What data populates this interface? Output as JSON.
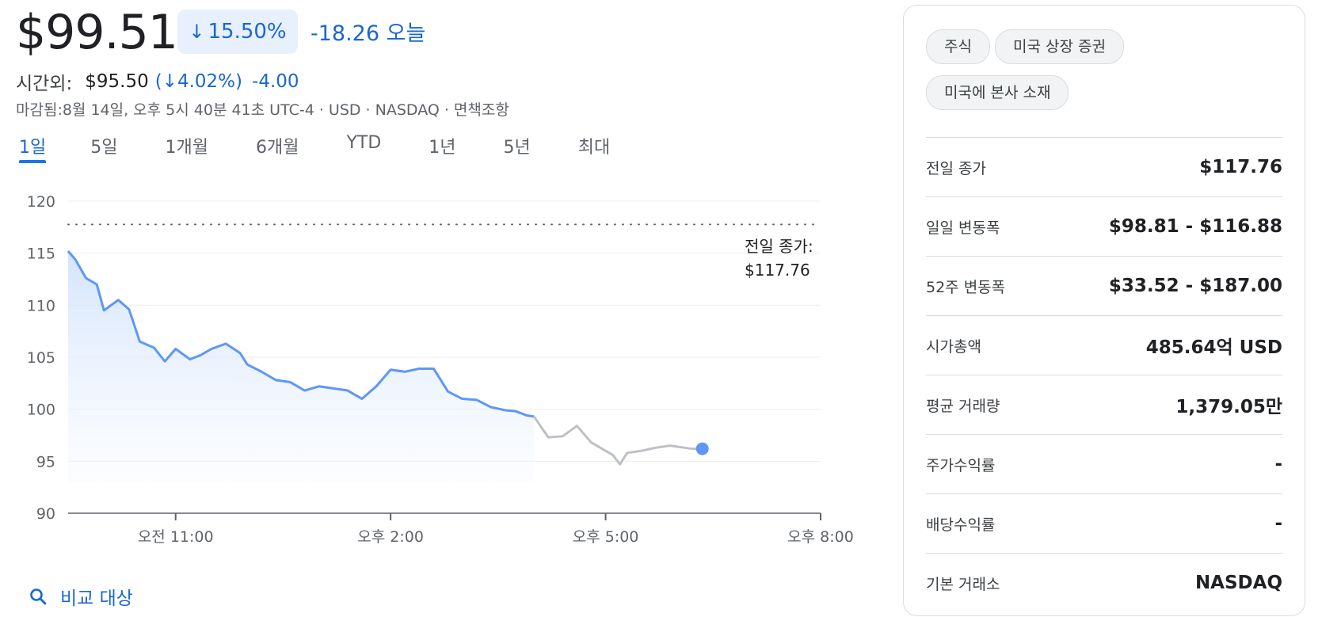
{
  "quote": {
    "price": "$99.51",
    "change_pct": "15.50%",
    "change_arrow": "↓",
    "change_abs": "-18.26 오늘",
    "after_hours": {
      "label": "시간외:",
      "price": "$95.50",
      "pct": "(↓4.02%)",
      "abs": "-4.00"
    },
    "closed_note": "마감됨:8월 14일, 오후 5시 40분 41초 UTC-4 · USD · NASDAQ · 면책조항"
  },
  "tabs": [
    {
      "label": "1일",
      "active": true
    },
    {
      "label": "5일",
      "active": false
    },
    {
      "label": "1개월",
      "active": false
    },
    {
      "label": "6개월",
      "active": false
    },
    {
      "label": "YTD",
      "active": false
    },
    {
      "label": "1년",
      "active": false
    },
    {
      "label": "5년",
      "active": false
    },
    {
      "label": "최대",
      "active": false
    }
  ],
  "chart_data": {
    "type": "line",
    "ylim": [
      90,
      120
    ],
    "yticks": [
      "120",
      "115",
      "110",
      "105",
      "100",
      "95",
      "90"
    ],
    "xticks": [
      "오전 11:00",
      "오후 2:00",
      "오후 5:00",
      "오후 8:00"
    ],
    "prev_close_label": "전일 종가:",
    "prev_close_value": "$117.76",
    "prev_close": 117.76,
    "x_hours": [
      9.5,
      20
    ],
    "series": [
      {
        "segment": "regular",
        "color": "#5e97f6",
        "x": [
          9.5,
          9.6,
          9.75,
          9.9,
          10.0,
          10.2,
          10.35,
          10.5,
          10.7,
          10.85,
          11.0,
          11.2,
          11.35,
          11.5,
          11.7,
          11.9,
          12.0,
          12.2,
          12.4,
          12.6,
          12.8,
          13.0,
          13.2,
          13.4,
          13.6,
          13.8,
          14.0,
          14.2,
          14.4,
          14.6,
          14.8,
          15.0,
          15.2,
          15.4,
          15.6,
          15.75,
          15.9,
          16.0
        ],
        "values": [
          115.2,
          114.4,
          112.6,
          112.0,
          109.5,
          110.5,
          109.6,
          106.5,
          105.9,
          104.6,
          105.8,
          104.8,
          105.2,
          105.8,
          106.3,
          105.4,
          104.3,
          103.6,
          102.8,
          102.6,
          101.8,
          102.2,
          102.0,
          101.8,
          101.0,
          102.2,
          103.8,
          103.6,
          103.9,
          103.9,
          101.7,
          101.0,
          100.9,
          100.2,
          99.9,
          99.8,
          99.4,
          99.3
        ]
      },
      {
        "segment": "after_hours",
        "color": "#bdc1c6",
        "x": [
          16.0,
          16.2,
          16.4,
          16.6,
          16.8,
          17.0,
          17.1,
          17.2,
          17.3,
          17.5,
          17.7,
          17.9,
          18.2,
          18.35
        ],
        "values": [
          99.3,
          97.3,
          97.4,
          98.4,
          96.8,
          96.0,
          95.6,
          94.7,
          95.8,
          96.0,
          96.3,
          96.5,
          96.2,
          96.2
        ]
      }
    ]
  },
  "compare": {
    "label": "비교 대상",
    "icon": "search-icon"
  },
  "panel": {
    "chips": [
      "주식",
      "미국 상장 증권",
      "미국에 본사 소재"
    ],
    "stats": [
      {
        "label": "전일 종가",
        "value": "$117.76"
      },
      {
        "label": "일일 변동폭",
        "value": "$98.81 - $116.88"
      },
      {
        "label": "52주 변동폭",
        "value": "$33.52 - $187.00"
      },
      {
        "label": "시가총액",
        "value": "485.64억 USD"
      },
      {
        "label": "평균 거래량",
        "value": "1,379.05만"
      },
      {
        "label": "주가수익률",
        "value": "-"
      },
      {
        "label": "배당수익률",
        "value": "-"
      },
      {
        "label": "기본 거래소",
        "value": "NASDAQ"
      }
    ]
  }
}
